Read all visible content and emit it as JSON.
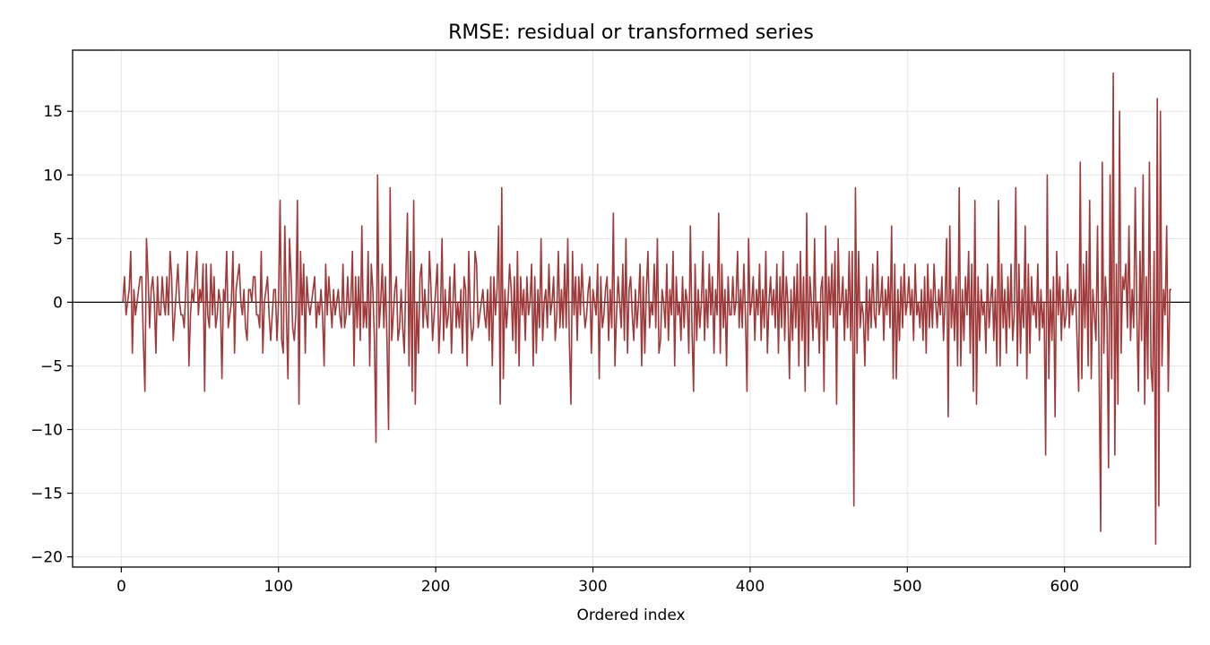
{
  "chart_data": {
    "type": "line",
    "title": "RMSE: residual or transformed series",
    "xlabel": "Ordered index",
    "ylabel": "",
    "xlim": [
      -31,
      680
    ],
    "ylim": [
      -20.8,
      19.8
    ],
    "x_ticks": [
      0,
      100,
      200,
      300,
      400,
      500,
      600
    ],
    "y_ticks": [
      -20,
      -15,
      -10,
      -5,
      0,
      5,
      10,
      15
    ],
    "y_tick_labels": [
      "−20",
      "−15",
      "−10",
      "−5",
      "0",
      "5",
      "10",
      "15"
    ],
    "grid": true,
    "zero_line": true,
    "legend": "none",
    "colors": {
      "series": "#a03a3a",
      "zero_line": "#000000",
      "grid": "#e6e6e6"
    },
    "x_start": 1,
    "x_step": 1,
    "series": [
      {
        "values": [
          0,
          2,
          -1,
          0,
          1,
          4,
          -4,
          1,
          -1,
          0,
          1,
          2,
          2,
          -3,
          -7,
          5,
          2,
          -2,
          1,
          2,
          0,
          -4,
          2,
          -1,
          -1,
          2,
          0,
          -1,
          2,
          -1,
          4,
          2,
          -3,
          -1,
          1,
          3,
          0,
          -1,
          -1,
          -2,
          1,
          4,
          -5,
          -1,
          1,
          0,
          2,
          4,
          -1,
          1,
          0,
          3,
          -7,
          3,
          -1,
          -2,
          3,
          -1,
          2,
          -2,
          -1,
          1,
          0,
          -6,
          1,
          0,
          4,
          -2,
          -1,
          0,
          4,
          -4,
          1,
          2,
          3,
          0,
          -1,
          1,
          -2,
          -3,
          1,
          1,
          0,
          2,
          2,
          -1,
          -1,
          -2,
          4,
          -4,
          0,
          1,
          2,
          -1,
          -3,
          -1,
          1,
          1,
          -3,
          0,
          8,
          -3,
          -4,
          6,
          -1,
          -6,
          5,
          2,
          -2,
          -3,
          -1,
          8,
          -8,
          4,
          -1,
          3,
          -4,
          2,
          0,
          -1,
          0,
          1,
          2,
          -2,
          0,
          -1,
          1,
          -1,
          -5,
          3,
          -1,
          2,
          0,
          -2,
          1,
          -1,
          0,
          1,
          -1,
          -2,
          3,
          -2,
          -1,
          2,
          -1,
          0,
          4,
          -5,
          2,
          -2,
          2,
          -3,
          6,
          -2,
          0,
          -2,
          4,
          -5,
          3,
          1,
          -3,
          -11,
          10,
          -2,
          0,
          3,
          -2,
          2,
          -3,
          -10,
          9,
          -3,
          -1,
          1,
          2,
          -3,
          -2,
          1,
          -2,
          -4,
          2,
          7,
          -5,
          4,
          -7,
          8,
          -8,
          0,
          -4,
          2,
          3,
          -2,
          1,
          -1,
          -2,
          4,
          1,
          -3,
          -1,
          1,
          3,
          -4,
          -1,
          5,
          -3,
          1,
          -2,
          -1,
          2,
          -4,
          0,
          3,
          -2,
          0,
          -2,
          1,
          -4,
          2,
          1,
          -5,
          4,
          -1,
          -3,
          -2,
          4,
          3,
          -2,
          -1,
          0,
          1,
          -1,
          -2,
          1,
          -3,
          2,
          -5,
          2,
          -1,
          1,
          6,
          -8,
          9,
          -6,
          1,
          -2,
          0,
          3,
          1,
          -3,
          2,
          -4,
          4,
          -5,
          2,
          -1,
          1,
          -3,
          2,
          -1,
          0,
          3,
          -5,
          2,
          -4,
          1,
          -2,
          5,
          -3,
          0,
          1,
          -2,
          3,
          -1,
          0,
          2,
          -3,
          -1,
          4,
          -2,
          1,
          -2,
          3,
          -2,
          5,
          -3,
          -8,
          4,
          -1,
          2,
          -3,
          2,
          -1,
          3,
          0,
          -2,
          -1,
          1,
          2,
          -4,
          1,
          0,
          -1,
          3,
          -6,
          2,
          -2,
          -1,
          1,
          2,
          -3,
          1,
          -2,
          7,
          -5,
          -1,
          2,
          0,
          -2,
          3,
          -3,
          5,
          -4,
          1,
          2,
          -1,
          -3,
          1,
          -2,
          0,
          3,
          -5,
          2,
          -4,
          1,
          4,
          -2,
          0,
          -1,
          3,
          -2,
          5,
          -4,
          -3,
          1,
          0,
          -2,
          3,
          -3,
          1,
          -1,
          4,
          -5,
          2,
          -1,
          0,
          -3,
          2,
          -2,
          1,
          0,
          -4,
          6,
          -2,
          -7,
          3,
          -3,
          1,
          -2,
          0,
          4,
          -3,
          1,
          -2,
          3,
          -1,
          2,
          -4,
          1,
          -1,
          7,
          -4,
          3,
          -2,
          1,
          -5,
          2,
          -1,
          -1,
          2,
          -1,
          0,
          4,
          -2,
          1,
          -2,
          3,
          -1,
          -7,
          5,
          -1,
          0,
          2,
          -3,
          1,
          -1,
          3,
          -3,
          1,
          -2,
          4,
          -4,
          0,
          2,
          -1,
          1,
          -2,
          3,
          -4,
          2,
          -2,
          4,
          -3,
          2,
          0,
          -6,
          1,
          -3,
          2,
          -2,
          3,
          -5,
          4,
          -3,
          2,
          -7,
          7,
          -5,
          2,
          0,
          -3,
          5,
          -2,
          0,
          -4,
          1,
          2,
          -7,
          6,
          -3,
          2,
          -1,
          3,
          -2,
          4,
          -8,
          5,
          -1,
          0,
          2,
          -3,
          1,
          -2,
          4,
          -3,
          4,
          -16,
          9,
          -4,
          4,
          -2,
          0,
          -1,
          -5,
          2,
          -3,
          1,
          -2,
          3,
          -1,
          -2,
          4,
          -1,
          0,
          2,
          -3,
          1,
          -1,
          2,
          -2,
          6,
          -6,
          3,
          -6,
          1,
          -3,
          2,
          -2,
          3,
          -1,
          0,
          2,
          -1,
          1,
          -3,
          3,
          -1,
          0,
          -2,
          1,
          -3,
          2,
          -4,
          3,
          -2,
          1,
          -2,
          3,
          0,
          -2,
          1,
          -1,
          2,
          -3,
          0,
          5,
          -9,
          6,
          -2,
          1,
          -3,
          2,
          -5,
          9,
          -5,
          1,
          -3,
          2,
          -1,
          4,
          -4,
          3,
          -7,
          8,
          -8,
          2,
          -3,
          1,
          -1,
          0,
          -4,
          3,
          -2,
          0,
          2,
          -3,
          1,
          -5,
          8,
          -5,
          3,
          -2,
          1,
          -4,
          2,
          -2,
          3,
          -3,
          -1,
          9,
          -5,
          3,
          -4,
          1,
          -2,
          6,
          -6,
          3,
          -4,
          2,
          -1,
          0,
          -2,
          3,
          -3,
          1,
          -2,
          0,
          -12,
          10,
          -6,
          1,
          -3,
          2,
          -9,
          4,
          -1,
          2,
          -3,
          1,
          -2,
          -1,
          3,
          -2,
          1,
          -1,
          0,
          1,
          -3,
          -7,
          11,
          -6,
          3,
          -2,
          4,
          -5,
          8,
          -6,
          1,
          -1,
          -3,
          6,
          -5,
          -18,
          11,
          -4,
          2,
          -1,
          -13,
          10,
          -6,
          18,
          -12,
          3,
          -8,
          15,
          -4,
          2,
          1,
          3,
          -2,
          6,
          -3,
          1,
          -2,
          9,
          -1,
          -7,
          4,
          -3,
          10,
          -8,
          2,
          -6,
          11,
          -5,
          -7,
          4,
          -19,
          16,
          -16,
          15,
          -5,
          1,
          -1,
          6,
          -7,
          1,
          1
        ]
      }
    ]
  }
}
